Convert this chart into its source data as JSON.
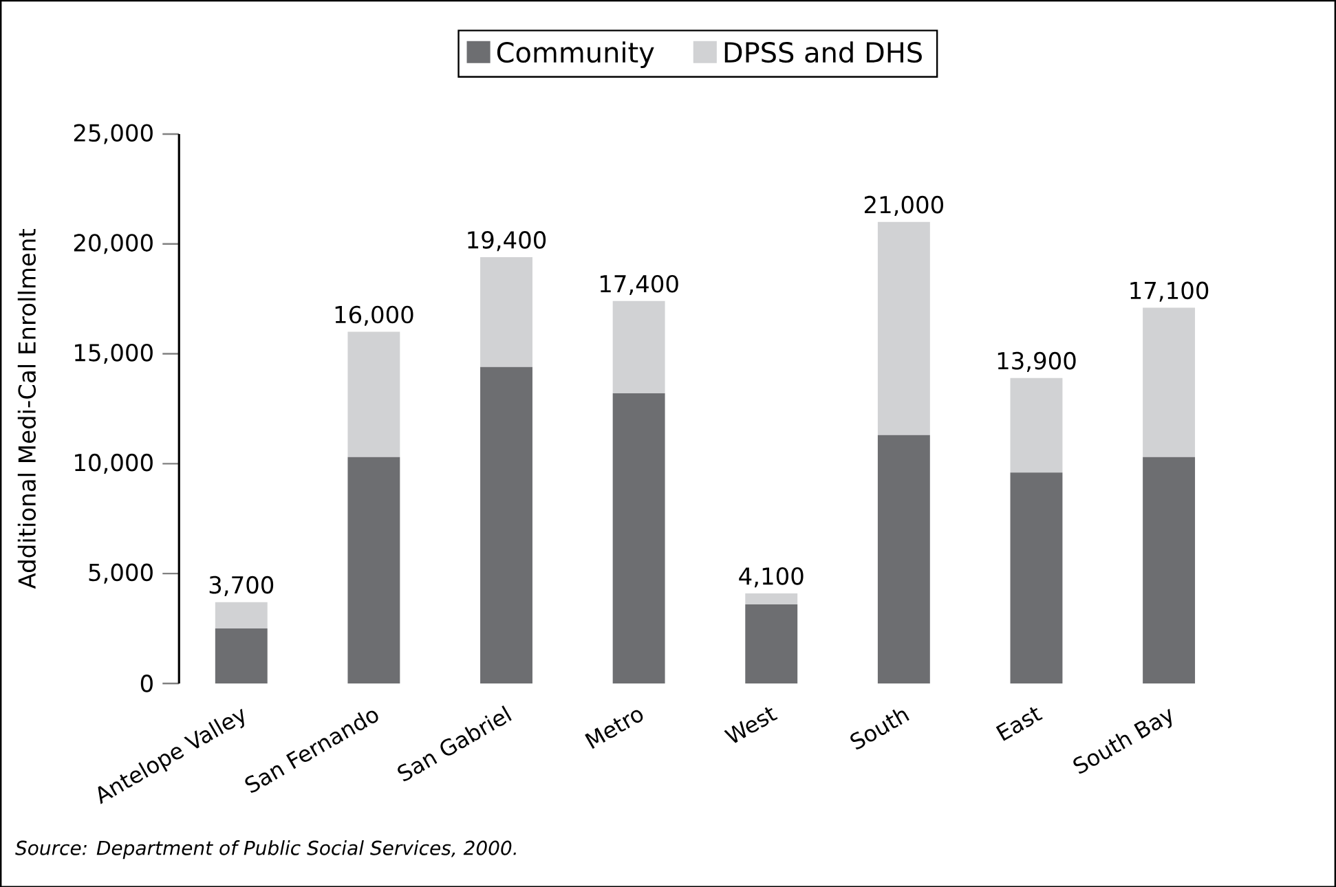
{
  "chart_data": {
    "type": "bar",
    "stacked": true,
    "ylabel": "Additional Medi-Cal Enrollment",
    "categories": [
      "Antelope Valley",
      "San Fernando",
      "San Gabriel",
      "Metro",
      "West",
      "South",
      "East",
      "South Bay"
    ],
    "series": [
      {
        "name": "Community",
        "color": "#6d6e71",
        "values": [
          2500,
          10300,
          14400,
          13200,
          3600,
          11300,
          9600,
          10300
        ]
      },
      {
        "name": "DPSS and DHS",
        "color": "#d1d2d4",
        "values": [
          1200,
          5700,
          5000,
          4200,
          500,
          9700,
          4300,
          6800
        ]
      }
    ],
    "totals": [
      "3,700",
      "16,000",
      "19,400",
      "17,400",
      "4,100",
      "21,000",
      "13,900",
      "17,100"
    ],
    "ylim": [
      0,
      25000
    ],
    "yticks": [
      {
        "value": 0,
        "label": "0"
      },
      {
        "value": 5000,
        "label": "5,000"
      },
      {
        "value": 10000,
        "label": "10,000"
      },
      {
        "value": 15000,
        "label": "15,000"
      },
      {
        "value": 20000,
        "label": "20,000"
      },
      {
        "value": 25000,
        "label": "25,000"
      }
    ],
    "legend": "top",
    "grid": false,
    "annotations": [
      "Source: Department of Public Social Services, 2000."
    ]
  }
}
